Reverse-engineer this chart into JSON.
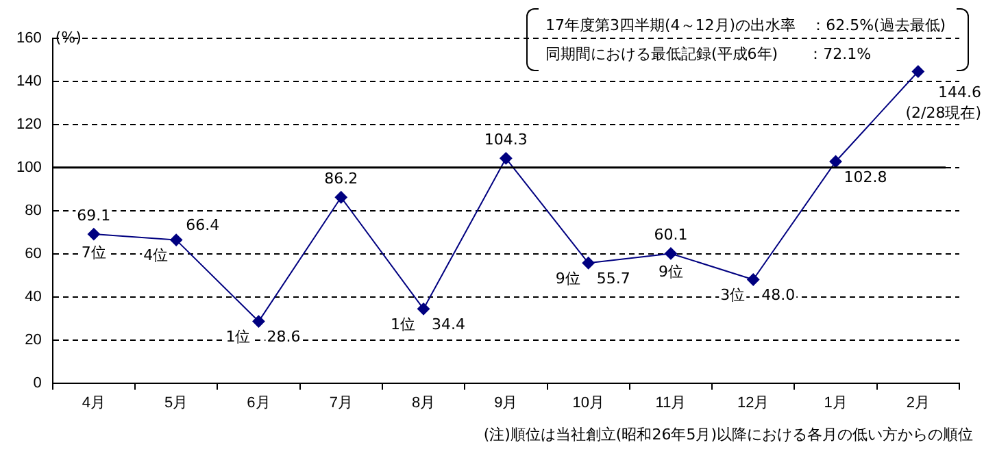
{
  "chart_data": {
    "type": "line",
    "ylabel": "(%)",
    "categories": [
      "4月",
      "5月",
      "6月",
      "7月",
      "8月",
      "9月",
      "10月",
      "11月",
      "12月",
      "1月",
      "2月"
    ],
    "values": [
      69.1,
      66.4,
      28.6,
      86.2,
      34.4,
      104.3,
      55.7,
      60.1,
      48.0,
      102.8,
      144.6
    ],
    "value_labels": [
      "69.1",
      "66.4",
      "28.6",
      "86.2",
      "34.4",
      "104.3",
      "55.7",
      "60.1",
      "48.0",
      "102.8",
      "144.6"
    ],
    "color": "#000080",
    "marker": "diamond",
    "line_style": "solid",
    "ylim": [
      0,
      160
    ],
    "yticks": [
      0,
      20,
      40,
      60,
      80,
      100,
      120,
      140,
      160
    ],
    "grid": "y",
    "legend": false,
    "ref_lines": [
      {
        "axis": "y",
        "value": 100,
        "color": "#000000",
        "line_style": "solid"
      }
    ],
    "annotations": [
      "17年度第3四半期(4～12月)の出水率　：62.5%(過去最低)",
      "同期間における最低記録(平成6年)　　：72.1%",
      {
        "text": "7位",
        "x": "4月",
        "y": 69.1
      },
      {
        "text": "4位",
        "x": "5月",
        "y": 66.4
      },
      {
        "text": "1位",
        "x": "6月",
        "y": 28.6
      },
      {
        "text": "1位",
        "x": "8月",
        "y": 34.4
      },
      {
        "text": "9位",
        "x": "10月",
        "y": 55.7
      },
      {
        "text": "9位",
        "x": "11月",
        "y": 60.1
      },
      {
        "text": "3位",
        "x": "12月",
        "y": 48.0
      },
      {
        "text": "(2/28現在)",
        "x": "2月",
        "y": 144.6
      },
      "(注)順位は当社創立(昭和26年5月)以降における各月の低い方からの順位"
    ]
  }
}
